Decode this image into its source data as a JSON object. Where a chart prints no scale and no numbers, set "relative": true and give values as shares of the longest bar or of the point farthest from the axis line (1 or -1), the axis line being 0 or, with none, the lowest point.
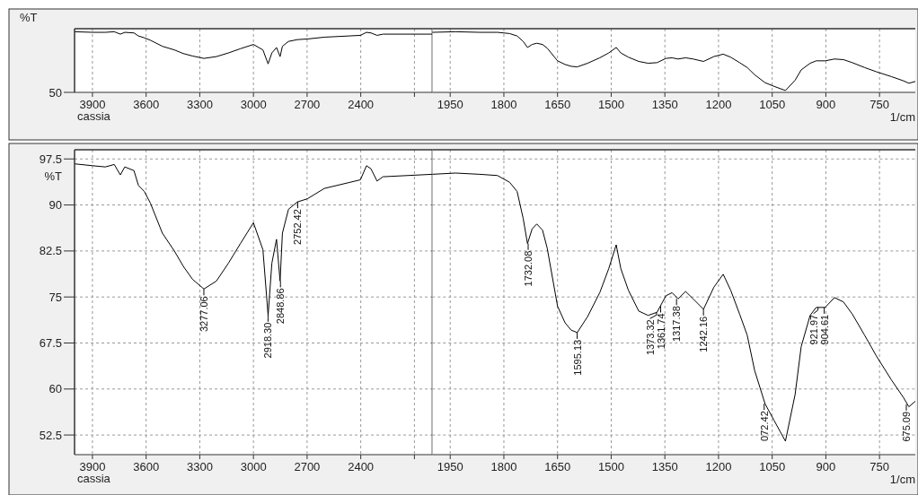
{
  "chart_data": [
    {
      "type": "line",
      "ylabel": "%T",
      "annotations": [
        "50",
        "cassia"
      ],
      "grid": "x",
      "relative": true,
      "xlim": [
        4000,
        2000
      ],
      "xticks": [
        3900,
        3600,
        3300,
        3000,
        2700,
        2400,
        {
          "value": 2100,
          "label": null
        }
      ],
      "series": [
        {
          "color": "#000000",
          "x": [
            4000,
            3900,
            3828,
            3778,
            3744,
            3719,
            3668,
            3643,
            3610,
            3576,
            3509,
            3442,
            3392,
            3341,
            3277,
            3207,
            3140,
            3073,
            3000,
            2947,
            2918,
            2897,
            2871,
            2851,
            2838,
            2804,
            2754,
            2699,
            2603,
            2402,
            2368,
            2343,
            2309,
            2276,
            2000
          ],
          "values": [
            1.0,
            0.99,
            0.99,
            1.0,
            0.96,
            0.99,
            0.98,
            0.93,
            0.9,
            0.86,
            0.76,
            0.7,
            0.64,
            0.6,
            0.56,
            0.59,
            0.65,
            0.72,
            0.79,
            0.7,
            0.47,
            0.65,
            0.74,
            0.59,
            0.76,
            0.84,
            0.87,
            0.88,
            0.91,
            0.94,
            0.99,
            0.98,
            0.94,
            0.96,
            0.96
          ]
        }
      ]
    },
    {
      "type": "line",
      "xlabel": "1/cm",
      "grid": "x",
      "relative": true,
      "xlim": [
        2000,
        650
      ],
      "tick_labels": "x",
      "xticks": [
        1950,
        1800,
        1650,
        1500,
        1350,
        1200,
        1050,
        900,
        750
      ],
      "series": [
        {
          "color": "#000000",
          "x": [
            2000,
            1935,
            1868,
            1818,
            1784,
            1763,
            1746,
            1734,
            1721,
            1708,
            1692,
            1679,
            1650,
            1629,
            1612,
            1595,
            1566,
            1532,
            1507,
            1486,
            1473,
            1452,
            1423,
            1397,
            1372,
            1347,
            1330,
            1313,
            1292,
            1271,
            1242,
            1213,
            1187,
            1166,
            1141,
            1120,
            1099,
            1070,
            1045,
            1013,
            986,
            969,
            944,
            927,
            902,
            876,
            851,
            826,
            792,
            759,
            717,
            683,
            668,
            650
          ],
          "values": [
            0.99,
            1.0,
            0.99,
            0.99,
            0.97,
            0.93,
            0.84,
            0.74,
            0.79,
            0.81,
            0.79,
            0.73,
            0.52,
            0.46,
            0.43,
            0.42,
            0.48,
            0.57,
            0.65,
            0.74,
            0.65,
            0.58,
            0.51,
            0.48,
            0.49,
            0.56,
            0.57,
            0.55,
            0.57,
            0.55,
            0.51,
            0.59,
            0.63,
            0.58,
            0.49,
            0.41,
            0.29,
            0.16,
            0.1,
            0.03,
            0.2,
            0.37,
            0.48,
            0.52,
            0.52,
            0.55,
            0.54,
            0.49,
            0.41,
            0.34,
            0.26,
            0.19,
            0.15,
            0.18
          ]
        }
      ]
    },
    {
      "type": "line",
      "ylabel": "%T",
      "grid": true,
      "xlim": [
        4000,
        2000
      ],
      "ylim": [
        49.3,
        99
      ],
      "xticks": [
        3900,
        3600,
        3300,
        3000,
        2700,
        2400,
        {
          "value": 2100,
          "label": null
        }
      ],
      "yticks": [
        52.5,
        60,
        67.5,
        75,
        82.5,
        90,
        97.5
      ],
      "annotations": [
        "cassia",
        {
          "text": "3277.06",
          "x": 3277.06,
          "y": 76.3
        },
        {
          "text": "2918.30",
          "x": 2918.3,
          "y": 72.0
        },
        {
          "text": "2848.86",
          "x": 2848.86,
          "y": 77.6
        },
        {
          "text": "2752.42",
          "x": 2752.42,
          "y": 90.5
        }
      ],
      "series": [
        {
          "color": "#000000",
          "x": [
            4000,
            3900,
            3828,
            3778,
            3744,
            3719,
            3668,
            3643,
            3610,
            3576,
            3509,
            3442,
            3392,
            3341,
            3277,
            3207,
            3140,
            3073,
            3000,
            2947,
            2918,
            2897,
            2871,
            2851,
            2838,
            2804,
            2754,
            2699,
            2603,
            2402,
            2368,
            2343,
            2309,
            2276,
            2000
          ],
          "values": [
            96.7,
            96.4,
            96.2,
            96.6,
            94.9,
            96.2,
            95.6,
            93.2,
            92.2,
            90.3,
            85.4,
            82.5,
            80.0,
            77.9,
            76.3,
            77.6,
            80.5,
            83.7,
            87.1,
            82.7,
            72.0,
            80.5,
            84.4,
            77.6,
            85.4,
            89.3,
            90.5,
            91.0,
            92.7,
            94.1,
            96.4,
            95.9,
            93.9,
            94.6,
            95.0
          ]
        }
      ]
    },
    {
      "type": "line",
      "xlabel": "1/cm",
      "grid": true,
      "xlim": [
        2000,
        650
      ],
      "ylim": [
        49.3,
        99
      ],
      "tick_labels": "x",
      "xticks": [
        1950,
        1800,
        1650,
        1500,
        1350,
        1200,
        1050,
        900,
        750
      ],
      "yticks": [
        52.5,
        60,
        67.5,
        75,
        82.5,
        90,
        97.5
      ],
      "annotations": [
        {
          "text": "1732.08",
          "x": 1732.08,
          "y": 83.7
        },
        {
          "text": "1595.13",
          "x": 1595.13,
          "y": 69.2
        },
        {
          "text": "1373.32",
          "x": 1373.32,
          "y": 72.5
        },
        {
          "text": "1361.74",
          "x": 1361.74,
          "y": 73.5
        },
        {
          "text": "1317.38",
          "x": 1317.38,
          "y": 74.7
        },
        {
          "text": "1242.16",
          "x": 1242.16,
          "y": 73.0
        },
        {
          "text": "072.42",
          "x": 1072.42,
          "y": 57.6
        },
        {
          "text": "921.97",
          "x": 921.97,
          "y": 73.3
        },
        {
          "text": "904.61",
          "x": 904.61,
          "y": 73.3
        },
        {
          "text": "675.09",
          "x": 675.09,
          "y": 57.5
        }
      ],
      "series": [
        {
          "color": "#000000",
          "x": [
            2000,
            1935,
            1868,
            1818,
            1784,
            1763,
            1746,
            1734,
            1721,
            1708,
            1692,
            1679,
            1650,
            1629,
            1612,
            1595,
            1566,
            1532,
            1507,
            1486,
            1473,
            1452,
            1423,
            1397,
            1372,
            1347,
            1330,
            1313,
            1292,
            1271,
            1242,
            1213,
            1187,
            1166,
            1141,
            1120,
            1099,
            1070,
            1045,
            1013,
            986,
            969,
            944,
            927,
            902,
            876,
            851,
            826,
            792,
            759,
            717,
            683,
            668,
            650
          ],
          "values": [
            95.0,
            95.2,
            95.0,
            94.8,
            93.7,
            92.2,
            87.8,
            83.7,
            86.1,
            86.9,
            85.9,
            83.0,
            73.5,
            70.8,
            69.6,
            69.2,
            71.8,
            75.7,
            79.6,
            83.5,
            79.6,
            76.1,
            72.7,
            72.0,
            72.5,
            75.2,
            75.7,
            74.7,
            75.9,
            74.7,
            73.0,
            76.6,
            78.7,
            76.1,
            72.2,
            68.8,
            63.0,
            57.6,
            54.9,
            51.5,
            59.1,
            66.9,
            72.0,
            73.3,
            73.3,
            74.9,
            74.2,
            72.2,
            68.8,
            65.4,
            61.5,
            58.6,
            57.1,
            58.0
          ]
        }
      ]
    }
  ]
}
